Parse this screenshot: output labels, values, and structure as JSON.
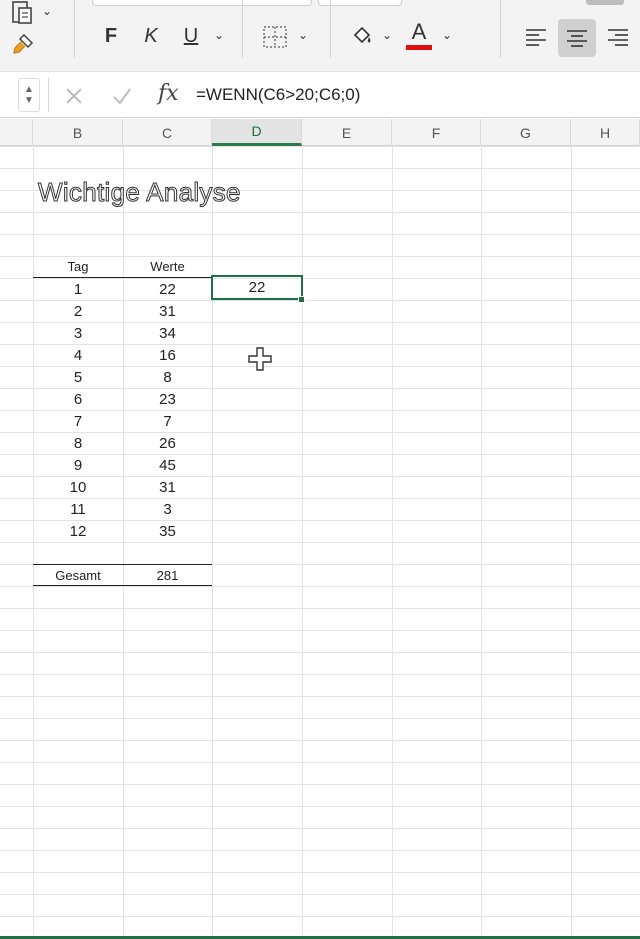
{
  "ribbon": {
    "bold_label": "F",
    "italic_label": "K",
    "underline_label": "U",
    "font_color_letter": "A",
    "font_color": "#e01010",
    "accent_color": "#1e7145"
  },
  "formula_bar": {
    "fx_label": "fx",
    "formula": "=WENN(C6>20;C6;0)"
  },
  "columns": [
    "B",
    "C",
    "D",
    "E",
    "F",
    "G",
    "H"
  ],
  "active_column": "D",
  "sheet": {
    "title": "Wichtige Analyse",
    "table_headers": {
      "tag": "Tag",
      "werte": "Werte"
    },
    "rows": [
      {
        "tag": "1",
        "wert": "22"
      },
      {
        "tag": "2",
        "wert": "31"
      },
      {
        "tag": "3",
        "wert": "34"
      },
      {
        "tag": "4",
        "wert": "16"
      },
      {
        "tag": "5",
        "wert": "8"
      },
      {
        "tag": "6",
        "wert": "23"
      },
      {
        "tag": "7",
        "wert": "7"
      },
      {
        "tag": "8",
        "wert": "26"
      },
      {
        "tag": "9",
        "wert": "45"
      },
      {
        "tag": "10",
        "wert": "31"
      },
      {
        "tag": "11",
        "wert": "3"
      },
      {
        "tag": "12",
        "wert": "35"
      }
    ],
    "total_label": "Gesamt",
    "total_value": "281",
    "active_cell_value": "22"
  }
}
